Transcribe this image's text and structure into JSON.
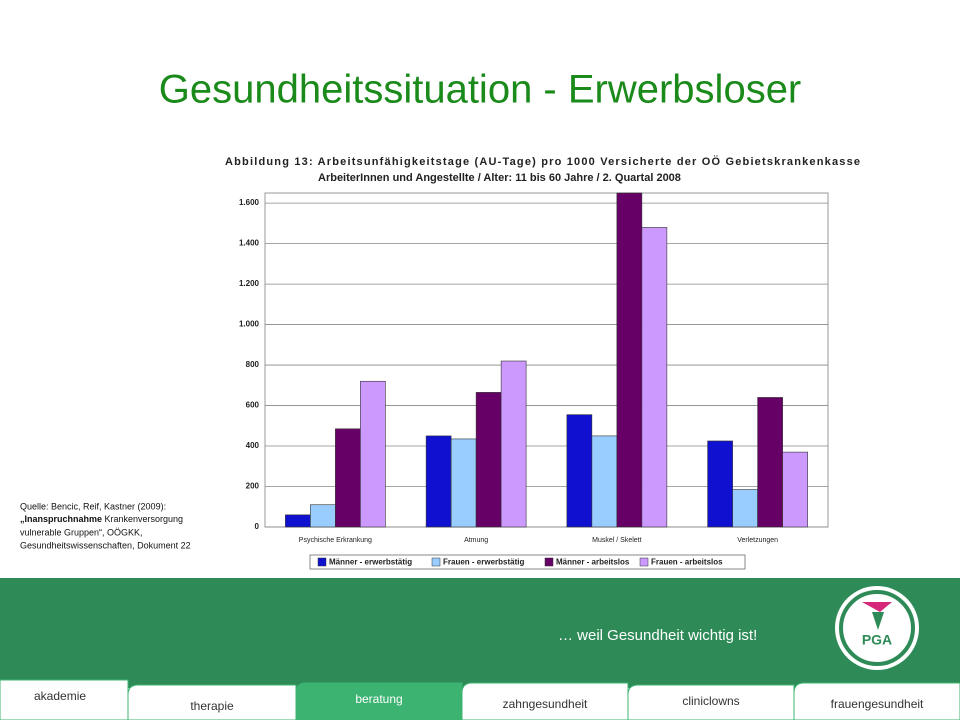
{
  "slide_title": "Gesundheitssituation - Erwerbsloser",
  "chart_data": {
    "type": "bar",
    "title_lines": [
      "Abbildung 13: Arbeitsunfähigkeitstage (AU-Tage) pro 1000 Versicherte der OÖ Gebietskrankenkasse",
      "ArbeiterInnen und Angestellte / Alter: 11 bis 60 Jahre / 2. Quartal 2008"
    ],
    "categories": [
      "Psychische Erkrankung",
      "Atmung",
      "Muskel / Skelett",
      "Verletzungen"
    ],
    "series": [
      {
        "name": "Männer - erwerbstätig",
        "color": "#1010d0",
        "values": [
          60,
          450,
          555,
          425
        ]
      },
      {
        "name": "Frauen - erwerbstätig",
        "color": "#99ccff",
        "values": [
          110,
          435,
          450,
          185
        ]
      },
      {
        "name": "Männer - arbeitslos",
        "color": "#660066",
        "values": [
          485,
          665,
          1650,
          640
        ]
      },
      {
        "name": "Frauen - arbeitslos",
        "color": "#cc99ff",
        "values": [
          720,
          820,
          1480,
          370
        ]
      }
    ],
    "ylim": [
      0,
      1650
    ],
    "yticks": [
      0,
      200,
      400,
      600,
      800,
      {
        "value": 1000,
        "label": "1.000"
      },
      {
        "value": 1200,
        "label": "1.200"
      },
      {
        "value": 1400,
        "label": "1.400"
      },
      {
        "value": 1600,
        "label": "1.600"
      }
    ],
    "grid": true,
    "legend": "bottom"
  },
  "source": {
    "line1": "Quelle: Bencic, Reif, Kastner (2009):",
    "line2_bold": "„Inanspruchnahme",
    "line2_rest": " Krankenversorgung",
    "line3": "vulnerable Gruppen“, OÖGKK,",
    "line4": "Gesundheitswissenschaften, Dokument 22"
  },
  "slogan": "… weil Gesundheit wichtig ist!",
  "logo": "PGA",
  "tabs": [
    "akademie",
    "therapie",
    "beratung",
    "zahngesundheit",
    "cliniclowns",
    "frauengesundheit"
  ]
}
